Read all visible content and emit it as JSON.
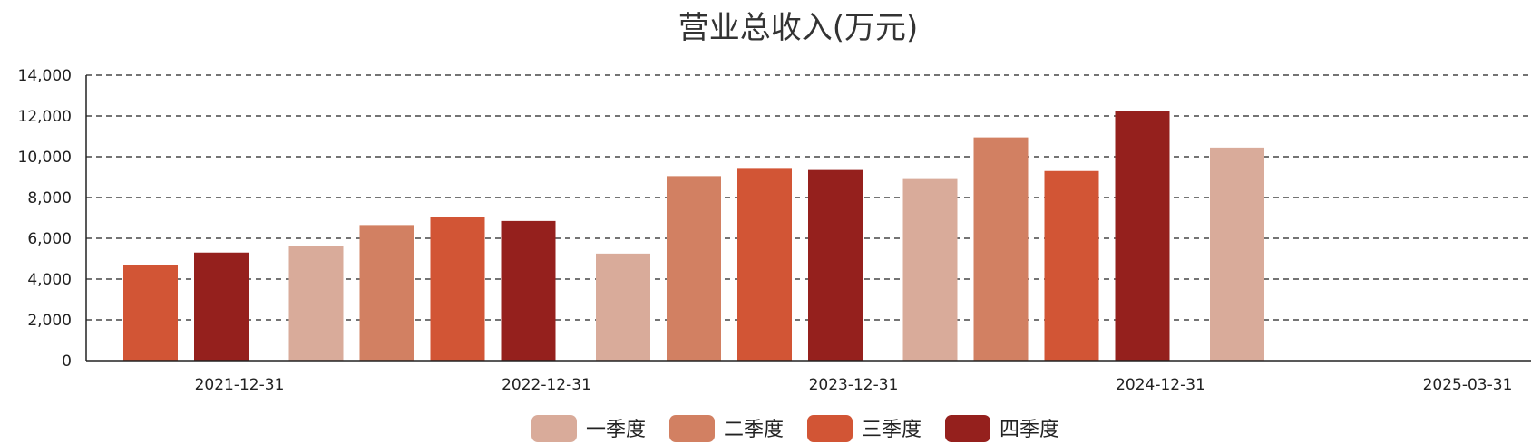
{
  "chart_data": {
    "type": "bar",
    "title": "营业总收入(万元)",
    "xlabel": "",
    "ylabel": "",
    "ylim": [
      0,
      14000
    ],
    "yticks": [
      "0",
      "2,000",
      "4,000",
      "6,000",
      "8,000",
      "10,000",
      "12,000",
      "14,000"
    ],
    "categories": [
      "2021-12-31",
      "2022-12-31",
      "2023-12-31",
      "2024-12-31",
      "2025-03-31"
    ],
    "series": [
      {
        "name": "一季度",
        "color": "#d9ab9a",
        "values": [
          null,
          5600,
          5250,
          8950,
          10450
        ]
      },
      {
        "name": "二季度",
        "color": "#d28062",
        "values": [
          null,
          6650,
          9050,
          10950,
          null
        ]
      },
      {
        "name": "三季度",
        "color": "#d25535",
        "values": [
          4700,
          7050,
          9450,
          9300,
          null
        ]
      },
      {
        "name": "四季度",
        "color": "#95201d",
        "values": [
          5300,
          6850,
          9350,
          12250,
          null
        ]
      }
    ],
    "grid": true,
    "legend_position": "bottom-center"
  }
}
